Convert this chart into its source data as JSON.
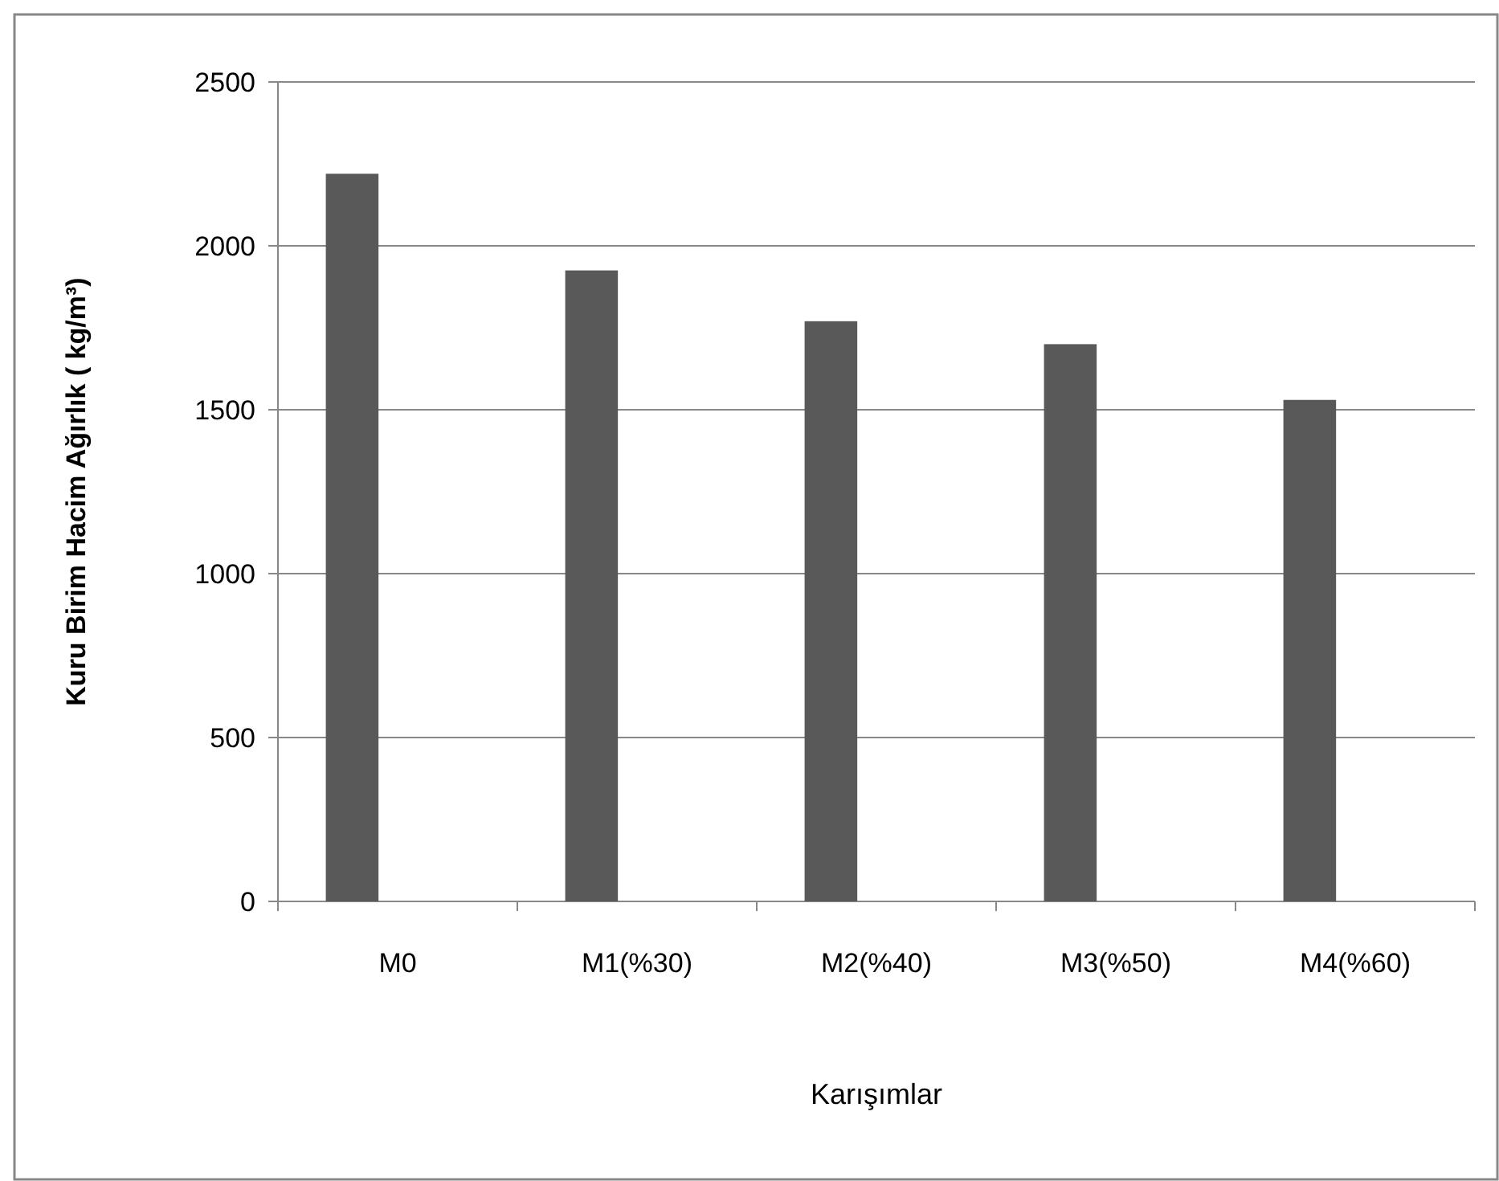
{
  "chart_data": {
    "type": "bar",
    "xlabel": "Karışımlar",
    "ylabel": "Kuru Birim Hacim Ağırlık ( kg/m³)",
    "categories": [
      "M0",
      "M1(%30)",
      "M2(%40)",
      "M3(%50)",
      "M4(%60)"
    ],
    "values": [
      2220,
      1925,
      1770,
      1700,
      1530
    ],
    "color": "#595959",
    "ylim": [
      0,
      2500
    ],
    "yticks": [
      0,
      500,
      1000,
      1500,
      2000,
      2500
    ],
    "grid": "y"
  }
}
